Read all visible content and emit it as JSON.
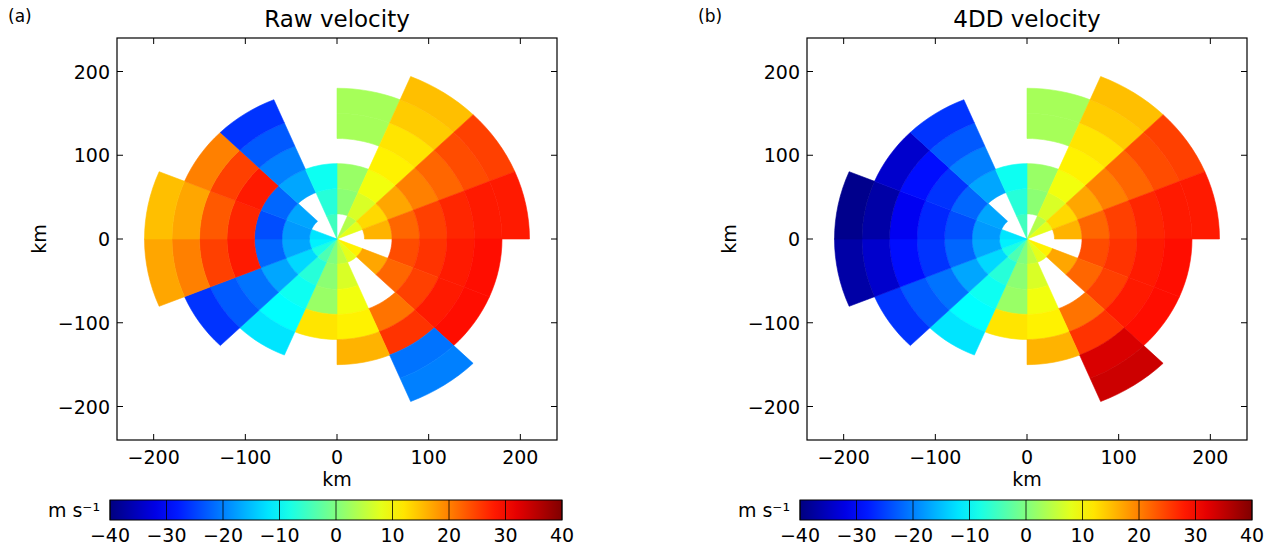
{
  "chart_data": [
    {
      "type": "heatmap",
      "panel": "(a)",
      "title": "Raw velocity",
      "xlabel": "km",
      "ylabel": "km",
      "xlim": [
        -240,
        240
      ],
      "ylim": [
        -240,
        240
      ],
      "xticks": [
        {
          "value": -200,
          "label": "−200"
        },
        {
          "value": -100,
          "label": "−100"
        },
        0,
        100,
        200
      ],
      "yticks": [
        {
          "value": -200,
          "label": "−200"
        },
        {
          "value": -100,
          "label": "−100"
        },
        0,
        100,
        200
      ],
      "azimuth_edges": [
        0,
        22.5,
        45,
        67.5,
        90,
        112.5,
        135,
        157.5,
        180,
        202.5,
        225,
        247.5,
        270,
        292.5,
        315,
        337.5,
        360
      ],
      "range_edges": [
        0,
        30,
        60,
        90,
        120,
        150,
        180,
        210
      ],
      "cells": [
        [
          null,
          4,
          8,
          null,
          null,
          11,
          8,
          5,
          0,
          -4,
          -8,
          -11,
          -12,
          null,
          null,
          -5
        ],
        [
          1,
          7,
          13,
          16,
          null,
          17,
          null,
          7,
          1,
          -7,
          -13,
          -17,
          -18,
          -17,
          null,
          -7
        ],
        [
          2,
          9,
          17,
          22,
          24,
          22,
          null,
          9,
          2,
          -9,
          -17,
          -22,
          -24,
          -22,
          -17,
          -9
        ],
        [
          null,
          11,
          20,
          25,
          26,
          25,
          21,
          11,
          12,
          -10,
          -21,
          28,
          27,
          28,
          -20,
          null
        ],
        [
          3,
          12,
          22,
          27,
          28,
          28,
          26,
          16,
          null,
          -12,
          -23,
          25,
          23,
          25,
          -23,
          null
        ],
        [
          3,
          14,
          24,
          28,
          29,
          29,
          -21,
          null,
          null,
          null,
          -26,
          20,
          17,
          20,
          -26,
          null
        ],
        [
          null,
          15,
          25,
          28,
          null,
          null,
          -20,
          null,
          null,
          null,
          null,
          17,
          15,
          null,
          null,
          null
        ]
      ],
      "colorbar_label": "m s⁻¹",
      "colorbar_range": [
        -40,
        40
      ],
      "colorbar_ticks": [
        {
          "value": -40,
          "label": "−40"
        },
        {
          "value": -30,
          "label": "−30"
        },
        {
          "value": -20,
          "label": "−20"
        },
        {
          "value": -10,
          "label": "−10"
        },
        0,
        10,
        20,
        30,
        40
      ]
    },
    {
      "type": "heatmap",
      "panel": "(b)",
      "title": "4DD velocity",
      "xlabel": "km",
      "ylabel": "km",
      "xlim": [
        -240,
        240
      ],
      "ylim": [
        -240,
        240
      ],
      "xticks": [
        {
          "value": -200,
          "label": "−200"
        },
        {
          "value": -100,
          "label": "−100"
        },
        0,
        100,
        200
      ],
      "yticks": [
        {
          "value": -200,
          "label": "−200"
        },
        {
          "value": -100,
          "label": "−100"
        },
        0,
        100,
        200
      ],
      "azimuth_edges": [
        0,
        22.5,
        45,
        67.5,
        90,
        112.5,
        135,
        157.5,
        180,
        202.5,
        225,
        247.5,
        270,
        292.5,
        315,
        337.5,
        360
      ],
      "range_edges": [
        0,
        30,
        60,
        90,
        120,
        150,
        180,
        210
      ],
      "cells": [
        [
          null,
          4,
          8,
          null,
          null,
          11,
          8,
          5,
          0,
          -4,
          -8,
          -11,
          -12,
          null,
          null,
          -5
        ],
        [
          1,
          7,
          13,
          16,
          null,
          17,
          null,
          7,
          1,
          -7,
          -13,
          -17,
          -18,
          -17,
          null,
          -7
        ],
        [
          2,
          9,
          17,
          22,
          24,
          22,
          null,
          9,
          2,
          -9,
          -17,
          -22,
          -24,
          -22,
          -17,
          -9
        ],
        [
          null,
          11,
          20,
          25,
          26,
          25,
          21,
          11,
          12,
          -10,
          -21,
          -26,
          -27,
          -26,
          -20,
          null
        ],
        [
          3,
          12,
          22,
          27,
          28,
          28,
          26,
          16,
          null,
          -12,
          -23,
          -29,
          -31,
          -29,
          -23,
          null
        ],
        [
          3,
          14,
          24,
          28,
          29,
          29,
          33,
          null,
          null,
          null,
          -26,
          -34,
          -37,
          -34,
          -26,
          null
        ],
        [
          null,
          15,
          25,
          28,
          null,
          null,
          34,
          null,
          null,
          null,
          null,
          -37,
          -39,
          null,
          null,
          null
        ]
      ],
      "colorbar_label": "m s⁻¹",
      "colorbar_range": [
        -40,
        40
      ],
      "colorbar_ticks": [
        {
          "value": -40,
          "label": "−40"
        },
        {
          "value": -30,
          "label": "−30"
        },
        {
          "value": -20,
          "label": "−20"
        },
        {
          "value": -10,
          "label": "−10"
        },
        0,
        10,
        20,
        30,
        40
      ]
    }
  ]
}
